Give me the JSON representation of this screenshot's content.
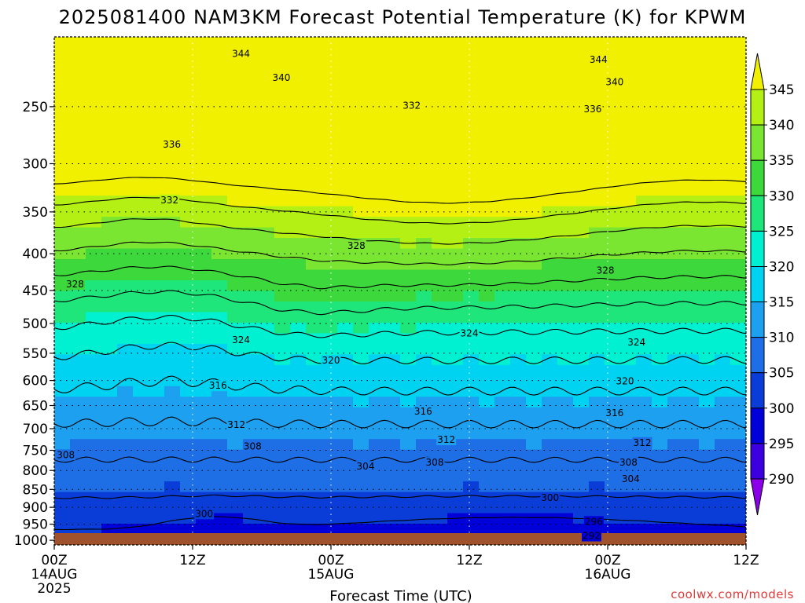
{
  "title": "2025081400 NAM3KM Forecast Potential Temperature (K) for KPWM",
  "xlabel": "Forecast Time (UTC)",
  "credit": "coolwx.com/models",
  "colors": {
    "ground": "#a0522d",
    "levels": {
      "lt290": "#8b00e8",
      "290": "#3c00e0",
      "295": "#0000d8",
      "300": "#0a3cd8",
      "305": "#1e6ee6",
      "310": "#1ea0f0",
      "315": "#00d2f2",
      "320": "#00f0d2",
      "325": "#1ee67a",
      "330": "#3cd83c",
      "335": "#7ae632",
      "340": "#b4f014",
      "345": "#f0f000"
    }
  },
  "chart_data": {
    "type": "heatmap",
    "title": "2025081400 NAM3KM Forecast Potential Temperature (K) for KPWM",
    "xlabel": "Forecast Time (UTC)",
    "ylabel": "",
    "x_ticks": [
      {
        "label": "00Z",
        "sub": "14AUG",
        "sub2": "2025",
        "hour": 0
      },
      {
        "label": "12Z",
        "sub": "",
        "sub2": "",
        "hour": 12
      },
      {
        "label": "00Z",
        "sub": "15AUG",
        "sub2": "",
        "hour": 24
      },
      {
        "label": "12Z",
        "sub": "",
        "sub2": "",
        "hour": 36
      },
      {
        "label": "00Z",
        "sub": "16AUG",
        "sub2": "",
        "hour": 48
      },
      {
        "label": "12Z",
        "sub": "",
        "sub2": "",
        "hour": 60
      }
    ],
    "xlim": [
      0,
      60
    ],
    "y_ticks": [
      250,
      300,
      350,
      400,
      450,
      500,
      550,
      600,
      650,
      700,
      750,
      800,
      850,
      900,
      950,
      1000
    ],
    "ylim": [
      1015,
      200
    ],
    "y_scale": "log",
    "colorbar_levels": [
      290,
      295,
      300,
      305,
      310,
      315,
      320,
      325,
      330,
      335,
      340,
      345
    ],
    "contour_interval": 4,
    "contour_labels": [
      {
        "text": "344",
        "hour": 16.2,
        "p": 211
      },
      {
        "text": "344",
        "hour": 47.2,
        "p": 215
      },
      {
        "text": "340",
        "hour": 19.7,
        "p": 228
      },
      {
        "text": "340",
        "hour": 48.6,
        "p": 231
      },
      {
        "text": "336",
        "hour": 10.2,
        "p": 282
      },
      {
        "text": "336",
        "hour": 46.7,
        "p": 252
      },
      {
        "text": "332",
        "hour": 31.0,
        "p": 249
      },
      {
        "text": "332",
        "hour": 10.0,
        "p": 337
      },
      {
        "text": "328",
        "hour": 26.2,
        "p": 390
      },
      {
        "text": "328",
        "hour": 47.8,
        "p": 422
      },
      {
        "text": "328",
        "hour": 1.8,
        "p": 441
      },
      {
        "text": "324",
        "hour": 16.2,
        "p": 527
      },
      {
        "text": "324",
        "hour": 36.0,
        "p": 516
      },
      {
        "text": "324",
        "hour": 50.5,
        "p": 531
      },
      {
        "text": "320",
        "hour": 24.0,
        "p": 563
      },
      {
        "text": "320",
        "hour": 49.5,
        "p": 601
      },
      {
        "text": "316",
        "hour": 14.2,
        "p": 610
      },
      {
        "text": "316",
        "hour": 32.0,
        "p": 662
      },
      {
        "text": "316",
        "hour": 48.6,
        "p": 666
      },
      {
        "text": "312",
        "hour": 15.8,
        "p": 691
      },
      {
        "text": "312",
        "hour": 34.0,
        "p": 725
      },
      {
        "text": "312",
        "hour": 51.0,
        "p": 732
      },
      {
        "text": "308",
        "hour": 17.2,
        "p": 741
      },
      {
        "text": "308",
        "hour": 1.0,
        "p": 761
      },
      {
        "text": "308",
        "hour": 33.0,
        "p": 780
      },
      {
        "text": "308",
        "hour": 49.8,
        "p": 780
      },
      {
        "text": "304",
        "hour": 27.0,
        "p": 790
      },
      {
        "text": "304",
        "hour": 50.0,
        "p": 822
      },
      {
        "text": "300",
        "hour": 13.0,
        "p": 919
      },
      {
        "text": "300",
        "hour": 43.0,
        "p": 873
      },
      {
        "text": "296",
        "hour": 46.8,
        "p": 942
      },
      {
        "text": "292",
        "hour": 46.6,
        "p": 986
      }
    ]
  }
}
